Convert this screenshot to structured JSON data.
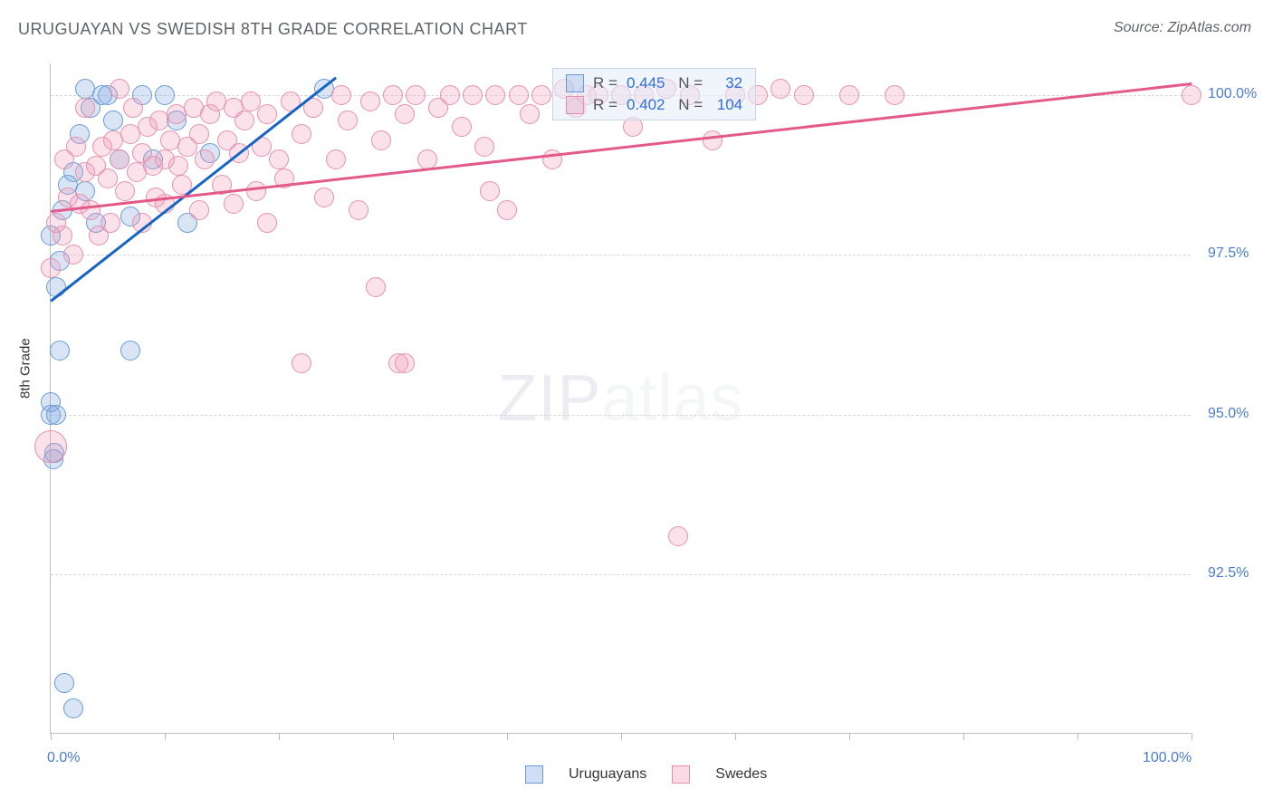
{
  "title": "URUGUAYAN VS SWEDISH 8TH GRADE CORRELATION CHART",
  "source": "Source: ZipAtlas.com",
  "y_axis_label": "8th Grade",
  "watermark": {
    "part1": "ZIP",
    "part2": "atlas"
  },
  "chart": {
    "type": "scatter",
    "xlim": [
      0,
      100
    ],
    "ylim": [
      90,
      100.5
    ],
    "x_ticks": [
      0,
      10,
      20,
      30,
      40,
      50,
      60,
      70,
      80,
      90,
      100
    ],
    "x_tick_labels": {
      "0": "0.0%",
      "100": "100.0%"
    },
    "y_grid": [
      92.5,
      95.0,
      97.5,
      100.0
    ],
    "y_tick_labels": [
      "92.5%",
      "95.0%",
      "97.5%",
      "100.0%"
    ],
    "background_color": "#ffffff",
    "grid_color": "#d8d8d8",
    "axis_color": "#bcbcbc",
    "label_color": "#4a7bd0",
    "marker_radius": 11,
    "marker_radius_large": 18,
    "series": [
      {
        "name": "Uruguayans",
        "fill": "rgba(120,160,220,0.28)",
        "stroke": "#6a9ad6",
        "trend_color": "#1664c4",
        "R": "0.445",
        "N": "32",
        "trend": {
          "x1": 0,
          "y1": 96.8,
          "x2": 25,
          "y2": 100.3
        },
        "points": [
          [
            0,
            95.0
          ],
          [
            0,
            95.2
          ],
          [
            0.5,
            95.0
          ],
          [
            0.5,
            97.0
          ],
          [
            0,
            97.8
          ],
          [
            0.8,
            97.4
          ],
          [
            1,
            98.2
          ],
          [
            1.5,
            98.6
          ],
          [
            2,
            98.8
          ],
          [
            2.5,
            99.4
          ],
          [
            3,
            98.5
          ],
          [
            3.5,
            99.8
          ],
          [
            4,
            98.0
          ],
          [
            4.5,
            100.0
          ],
          [
            5,
            100.0
          ],
          [
            5.5,
            99.6
          ],
          [
            6,
            99.0
          ],
          [
            7,
            98.1
          ],
          [
            8,
            100.0
          ],
          [
            9,
            99.0
          ],
          [
            10,
            100.0
          ],
          [
            11,
            99.6
          ],
          [
            12,
            98.0
          ],
          [
            14,
            99.1
          ],
          [
            0.8,
            96.0
          ],
          [
            7,
            96.0
          ],
          [
            1.2,
            90.8
          ],
          [
            2.0,
            90.4
          ],
          [
            0.2,
            94.3
          ],
          [
            0.3,
            94.4
          ],
          [
            24,
            100.1
          ],
          [
            3,
            100.1
          ]
        ]
      },
      {
        "name": "Swedes",
        "fill": "rgba(240,150,180,0.28)",
        "stroke": "#e690ac",
        "trend_color": "#e35a8a",
        "R": "0.402",
        "N": "104",
        "trend": {
          "x1": 0,
          "y1": 98.2,
          "x2": 100,
          "y2": 100.2
        },
        "points": [
          [
            0,
            94.5,
            "lg"
          ],
          [
            0,
            97.3
          ],
          [
            1,
            97.8
          ],
          [
            1.5,
            98.4
          ],
          [
            2,
            97.5
          ],
          [
            2.5,
            98.3
          ],
          [
            3,
            98.8
          ],
          [
            3.5,
            98.2
          ],
          [
            4,
            98.9
          ],
          [
            4.5,
            99.2
          ],
          [
            5,
            98.7
          ],
          [
            5.5,
            99.3
          ],
          [
            6,
            99.0
          ],
          [
            6.5,
            98.5
          ],
          [
            7,
            99.4
          ],
          [
            7.5,
            98.8
          ],
          [
            8,
            99.1
          ],
          [
            8.5,
            99.5
          ],
          [
            9,
            98.9
          ],
          [
            9.5,
            99.6
          ],
          [
            10,
            99.0
          ],
          [
            10.5,
            99.3
          ],
          [
            11,
            99.7
          ],
          [
            11.5,
            98.6
          ],
          [
            12,
            99.2
          ],
          [
            12.5,
            99.8
          ],
          [
            13,
            99.4
          ],
          [
            13.5,
            99.0
          ],
          [
            14,
            99.7
          ],
          [
            14.5,
            99.9
          ],
          [
            15,
            98.6
          ],
          [
            15.5,
            99.3
          ],
          [
            16,
            99.8
          ],
          [
            16.5,
            99.1
          ],
          [
            17,
            99.6
          ],
          [
            17.5,
            99.9
          ],
          [
            18,
            98.5
          ],
          [
            18.5,
            99.2
          ],
          [
            19,
            99.7
          ],
          [
            20,
            99.0
          ],
          [
            20.5,
            98.7
          ],
          [
            21,
            99.9
          ],
          [
            22,
            99.4
          ],
          [
            23,
            99.8
          ],
          [
            24,
            98.4
          ],
          [
            25,
            99.0
          ],
          [
            25.5,
            100.0
          ],
          [
            26,
            99.6
          ],
          [
            27,
            98.2
          ],
          [
            28,
            99.9
          ],
          [
            28.5,
            97.0
          ],
          [
            29,
            99.3
          ],
          [
            30,
            100.0
          ],
          [
            30.5,
            95.8
          ],
          [
            31,
            99.7
          ],
          [
            32,
            100.0
          ],
          [
            33,
            99.0
          ],
          [
            34,
            99.8
          ],
          [
            35,
            100.0
          ],
          [
            36,
            99.5
          ],
          [
            37,
            100.0
          ],
          [
            38,
            99.2
          ],
          [
            38.5,
            98.5
          ],
          [
            39,
            100.0
          ],
          [
            40,
            98.2
          ],
          [
            41,
            100.0
          ],
          [
            42,
            99.7
          ],
          [
            43,
            100.0
          ],
          [
            44,
            99.0
          ],
          [
            45,
            100.1
          ],
          [
            46,
            99.8
          ],
          [
            47,
            100.0
          ],
          [
            48,
            100.0
          ],
          [
            50,
            100.0
          ],
          [
            51,
            99.5
          ],
          [
            52,
            100.0
          ],
          [
            54,
            100.1
          ],
          [
            55,
            93.1
          ],
          [
            56,
            100.0
          ],
          [
            58,
            99.3
          ],
          [
            60,
            100.0
          ],
          [
            62,
            100.0
          ],
          [
            64,
            100.1
          ],
          [
            66,
            100.0
          ],
          [
            70,
            100.0
          ],
          [
            74,
            100.0
          ],
          [
            100,
            100.0
          ],
          [
            22,
            95.8
          ],
          [
            31,
            95.8
          ],
          [
            3,
            99.8
          ],
          [
            6,
            100.1
          ],
          [
            8,
            98.0
          ],
          [
            10,
            98.3
          ],
          [
            13,
            98.2
          ],
          [
            16,
            98.3
          ],
          [
            19,
            98.0
          ],
          [
            0.5,
            98.0
          ],
          [
            1.2,
            99.0
          ],
          [
            2.2,
            99.2
          ],
          [
            4.2,
            97.8
          ],
          [
            5.2,
            98.0
          ],
          [
            7.2,
            99.8
          ],
          [
            9.2,
            98.4
          ],
          [
            11.2,
            98.9
          ]
        ]
      }
    ]
  },
  "legend": {
    "items": [
      {
        "label": "Uruguayans",
        "fill": "rgba(120,160,220,0.35)",
        "stroke": "#6a9ad6"
      },
      {
        "label": "Swedes",
        "fill": "rgba(240,150,180,0.35)",
        "stroke": "#e690ac"
      }
    ]
  }
}
